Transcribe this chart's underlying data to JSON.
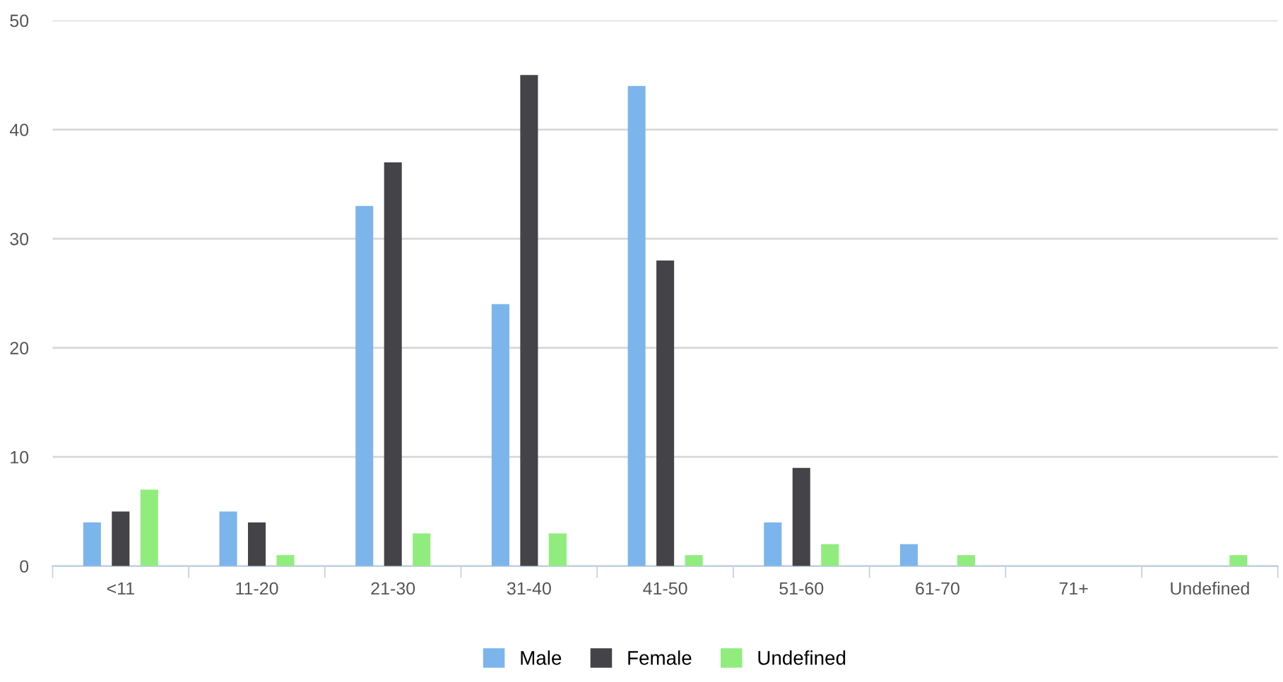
{
  "chart_data": {
    "type": "bar",
    "categories": [
      "<11",
      "11-20",
      "21-30",
      "31-40",
      "41-50",
      "51-60",
      "61-70",
      "71+",
      "Undefined"
    ],
    "series": [
      {
        "name": "Male",
        "color": "#7cb5ec",
        "values": [
          4,
          5,
          33,
          24,
          44,
          4,
          2,
          0,
          0
        ]
      },
      {
        "name": "Female",
        "color": "#434348",
        "values": [
          5,
          4,
          37,
          45,
          28,
          9,
          0,
          0,
          0
        ]
      },
      {
        "name": "Undefined",
        "color": "#90ed7d",
        "values": [
          7,
          1,
          3,
          3,
          1,
          2,
          1,
          0,
          1
        ]
      }
    ],
    "ylim": [
      0,
      50
    ],
    "yticks": [
      0,
      10,
      20,
      30,
      40,
      50
    ],
    "grid": "y",
    "legend": "bottom"
  }
}
